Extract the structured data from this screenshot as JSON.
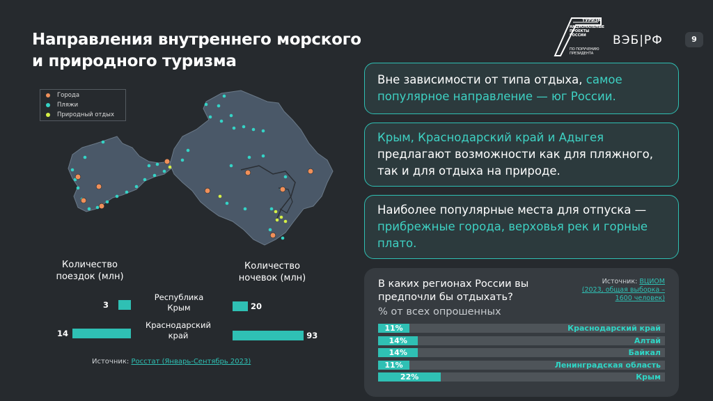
{
  "header": {
    "title_line1": "Направления внутреннего морского",
    "title_line2": "и природного туризма",
    "logo_tourism": "ТУРИЗМ",
    "logo_line1": "НАЦИОНАЛЬНЫЕ",
    "logo_line2": "ПРОЕКТЫ",
    "logo_line3": "РОССИИ",
    "logo_line4": "ПО ПОРУЧЕНИЮ",
    "logo_line5": "ПРЕЗИДЕНТА",
    "brand": "ВЭБ|РФ",
    "page_number": "9"
  },
  "legend": {
    "cities": "Города",
    "beaches": "Пляжи",
    "nature": "Природный отдых",
    "colors": {
      "cities": "#f0905a",
      "beaches": "#35d3c6",
      "nature": "#d6f046"
    }
  },
  "stats": {
    "trips_label": "Количество поездок (млн)",
    "nights_label": "Количество ночевок (млн)",
    "regions": [
      {
        "name": "Республика Крым",
        "trips": 3,
        "nights": 20
      },
      {
        "name": "Краснодарский край",
        "trips": 14,
        "nights": 93
      }
    ],
    "source_prefix": "Источник:",
    "source_link": "Росстат (Январь-Сентябрь 2023)"
  },
  "cards": [
    {
      "plain1": "Вне зависимости от типа отдыха, ",
      "accent": "самое популярное направление — юг России.",
      "plain2": ""
    },
    {
      "plain1": "",
      "accent": "Крым, Краснодарский край и Адыгея",
      "plain2": " предлагают возможности как для пляжного, так и для отдыха на природе."
    },
    {
      "plain1": "Наиболее популярные места для отпуска — ",
      "accent": "прибрежные города, верховья рек и горные плато.",
      "plain2": ""
    }
  ],
  "survey": {
    "question": "В каких регионах России вы предпочли бы отдыхать?",
    "subtitle": "% от всех опрошенных",
    "source_prefix": "Источник:",
    "source_link": "ВЦИОМ",
    "source_detail": "(2023, общая выборка – 1600 человек)",
    "rows": [
      {
        "label": "11%",
        "name": "Краснодарский край",
        "value": 11
      },
      {
        "label": "14%",
        "name": "Алтай",
        "value": 14
      },
      {
        "label": "14%",
        "name": "Байкал",
        "value": 14
      },
      {
        "label": "11%",
        "name": "Ленинградская область",
        "value": 11
      },
      {
        "label": "22%",
        "name": "Крым",
        "value": 22
      }
    ]
  },
  "colors": {
    "accent": "#2fc0b4",
    "background": "#262a2e",
    "map_fill": "#4a5868"
  }
}
